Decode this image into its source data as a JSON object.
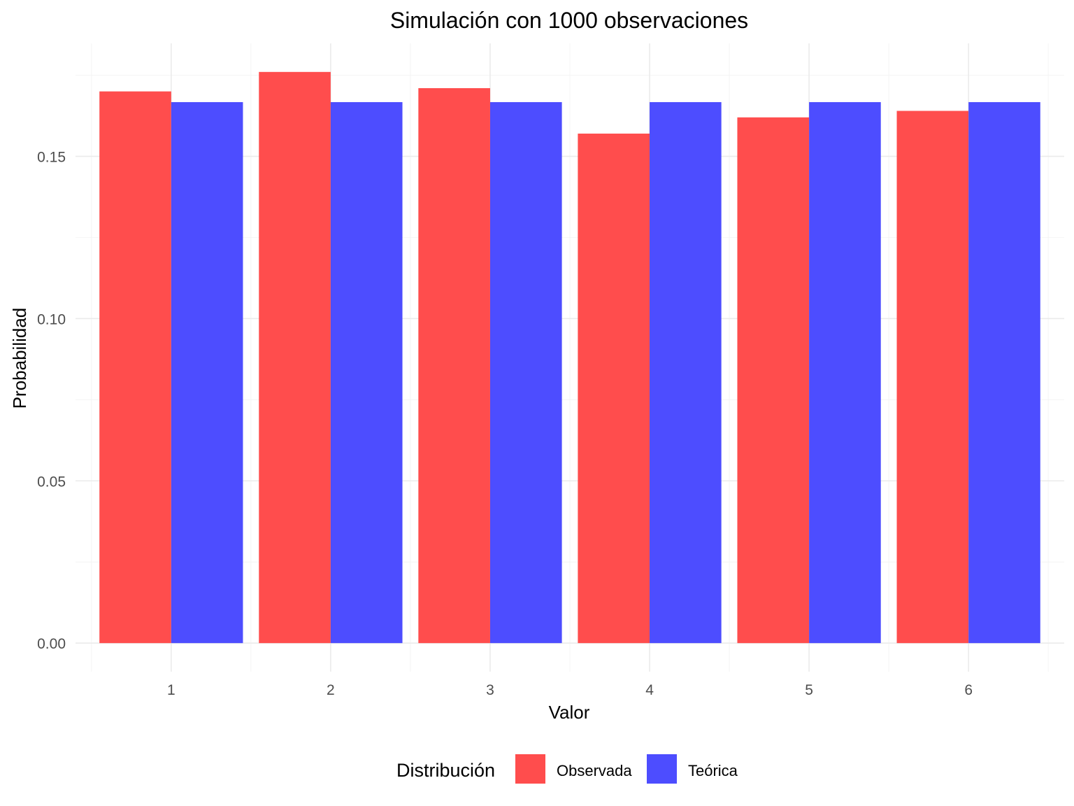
{
  "chart_data": {
    "type": "bar",
    "title": "Simulación con 1000 observaciones",
    "xlabel": "Valor",
    "ylabel": "Probabilidad",
    "categories": [
      "1",
      "2",
      "3",
      "4",
      "5",
      "6"
    ],
    "series": [
      {
        "name": "Observada",
        "color": "#ff4d4d",
        "values": [
          0.17,
          0.176,
          0.171,
          0.157,
          0.162,
          0.164
        ]
      },
      {
        "name": "Teórica",
        "color": "#4d4dff",
        "values": [
          0.1667,
          0.1667,
          0.1667,
          0.1667,
          0.1667,
          0.1667
        ]
      }
    ],
    "ylim": [
      -0.0088,
      0.1848
    ],
    "yticks": [
      0.0,
      0.05,
      0.1,
      0.15
    ],
    "ytick_labels": [
      "0.00",
      "0.05",
      "0.10",
      "0.15"
    ],
    "grid": true,
    "legend": {
      "title": "Distribución",
      "position": "bottom"
    }
  }
}
